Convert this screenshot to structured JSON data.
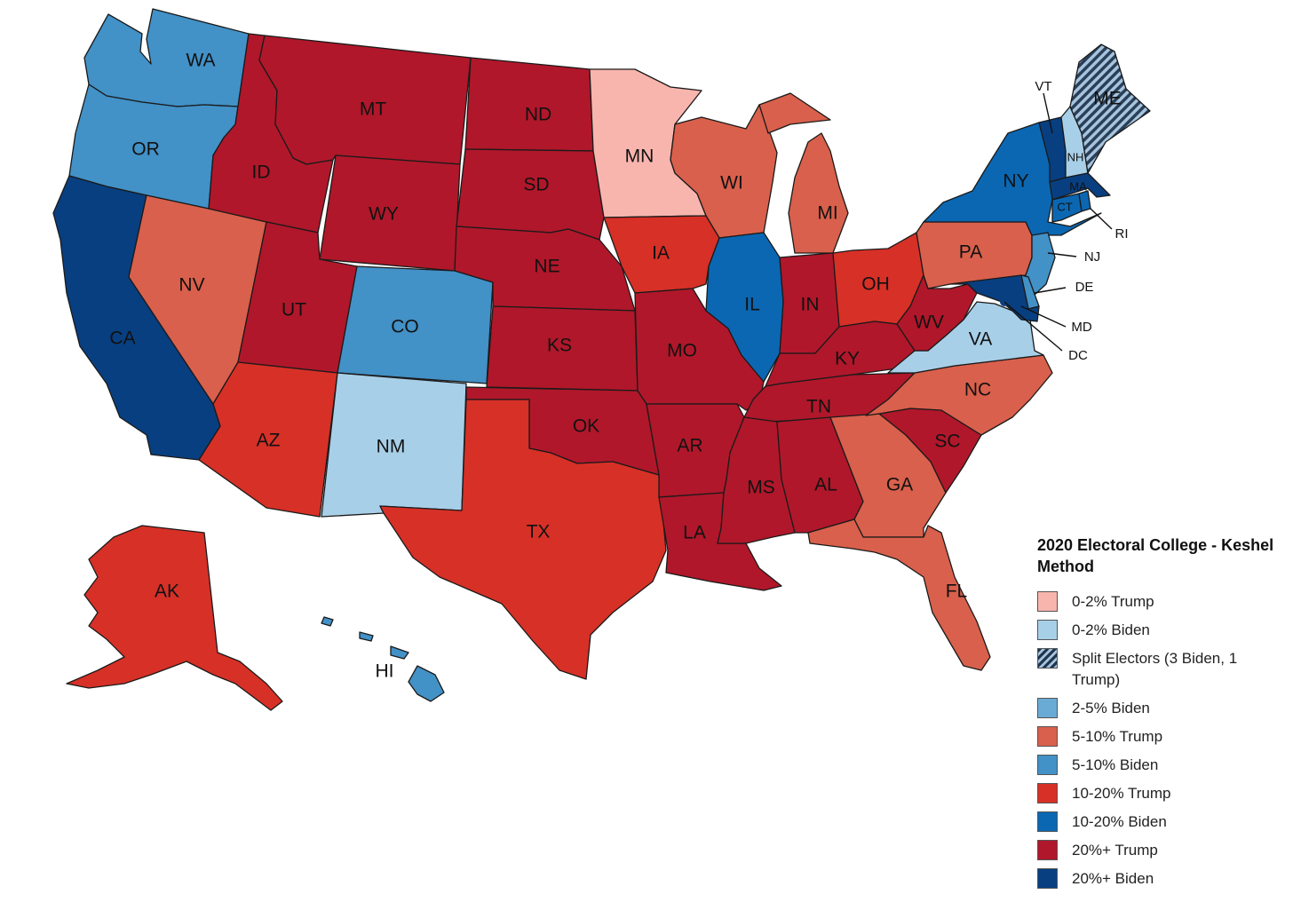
{
  "legend": {
    "title": "2020 Electoral College - Keshel Method",
    "items": [
      {
        "label": "0-2% Trump",
        "color": "#f8b5ae"
      },
      {
        "label": "0-2% Biden",
        "color": "#a8cfe8"
      },
      {
        "label": "Split Electors (3 Biden, 1 Trump)",
        "color": "hatch"
      },
      {
        "label": "2-5% Biden",
        "color": "#6aabd6"
      },
      {
        "label": "5-10% Trump",
        "color": "#d9604c"
      },
      {
        "label": "5-10% Biden",
        "color": "#4291c7"
      },
      {
        "label": "10-20% Trump",
        "color": "#d73027"
      },
      {
        "label": "10-20% Biden",
        "color": "#0b67b2"
      },
      {
        "label": "20%+ Trump",
        "color": "#b0172a"
      },
      {
        "label": "20%+ Biden",
        "color": "#083f80"
      }
    ]
  },
  "states": {
    "WA": {
      "label": "WA",
      "category": "5-10% Biden"
    },
    "OR": {
      "label": "OR",
      "category": "5-10% Biden"
    },
    "CA": {
      "label": "CA",
      "category": "20%+ Biden"
    },
    "NV": {
      "label": "NV",
      "category": "5-10% Trump"
    },
    "ID": {
      "label": "ID",
      "category": "20%+ Trump"
    },
    "MT": {
      "label": "MT",
      "category": "20%+ Trump"
    },
    "WY": {
      "label": "WY",
      "category": "20%+ Trump"
    },
    "UT": {
      "label": "UT",
      "category": "20%+ Trump"
    },
    "AZ": {
      "label": "AZ",
      "category": "10-20% Trump"
    },
    "CO": {
      "label": "CO",
      "category": "5-10% Biden"
    },
    "NM": {
      "label": "NM",
      "category": "0-2% Biden"
    },
    "ND": {
      "label": "ND",
      "category": "20%+ Trump"
    },
    "SD": {
      "label": "SD",
      "category": "20%+ Trump"
    },
    "NE": {
      "label": "NE",
      "category": "20%+ Trump"
    },
    "KS": {
      "label": "KS",
      "category": "20%+ Trump"
    },
    "OK": {
      "label": "OK",
      "category": "20%+ Trump"
    },
    "TX": {
      "label": "TX",
      "category": "10-20% Trump"
    },
    "MN": {
      "label": "MN",
      "category": "0-2% Trump"
    },
    "IA": {
      "label": "IA",
      "category": "10-20% Trump"
    },
    "MO": {
      "label": "MO",
      "category": "20%+ Trump"
    },
    "AR": {
      "label": "AR",
      "category": "20%+ Trump"
    },
    "LA": {
      "label": "LA",
      "category": "20%+ Trump"
    },
    "WI": {
      "label": "WI",
      "category": "5-10% Trump"
    },
    "IL": {
      "label": "IL",
      "category": "10-20% Biden"
    },
    "MI": {
      "label": "MI",
      "category": "5-10% Trump"
    },
    "IN": {
      "label": "IN",
      "category": "20%+ Trump"
    },
    "OH": {
      "label": "OH",
      "category": "10-20% Trump"
    },
    "KY": {
      "label": "KY",
      "category": "20%+ Trump"
    },
    "TN": {
      "label": "TN",
      "category": "20%+ Trump"
    },
    "MS": {
      "label": "MS",
      "category": "20%+ Trump"
    },
    "AL": {
      "label": "AL",
      "category": "20%+ Trump"
    },
    "GA": {
      "label": "GA",
      "category": "5-10% Trump"
    },
    "FL": {
      "label": "FL",
      "category": "5-10% Trump"
    },
    "SC": {
      "label": "SC",
      "category": "20%+ Trump"
    },
    "NC": {
      "label": "NC",
      "category": "5-10% Trump"
    },
    "VA": {
      "label": "VA",
      "category": "0-2% Biden"
    },
    "WV": {
      "label": "WV",
      "category": "20%+ Trump"
    },
    "PA": {
      "label": "PA",
      "category": "5-10% Trump"
    },
    "NY": {
      "label": "NY",
      "category": "10-20% Biden"
    },
    "VT": {
      "label": "VT",
      "category": "20%+ Biden"
    },
    "NH": {
      "label": "NH",
      "category": "0-2% Biden"
    },
    "ME": {
      "label": "ME",
      "category": "Split Electors (3 Biden, 1 Trump)"
    },
    "MA": {
      "label": "MA",
      "category": "20%+ Biden"
    },
    "RI": {
      "label": "RI",
      "category": "10-20% Biden"
    },
    "CT": {
      "label": "CT",
      "category": "10-20% Biden"
    },
    "NJ": {
      "label": "NJ",
      "category": "5-10% Biden"
    },
    "DE": {
      "label": "DE",
      "category": "5-10% Biden"
    },
    "MD": {
      "label": "MD",
      "category": "20%+ Biden"
    },
    "DC": {
      "label": "DC",
      "category": "20%+ Biden"
    },
    "AK": {
      "label": "AK",
      "category": "10-20% Trump"
    },
    "HI": {
      "label": "HI",
      "category": "5-10% Biden"
    }
  }
}
